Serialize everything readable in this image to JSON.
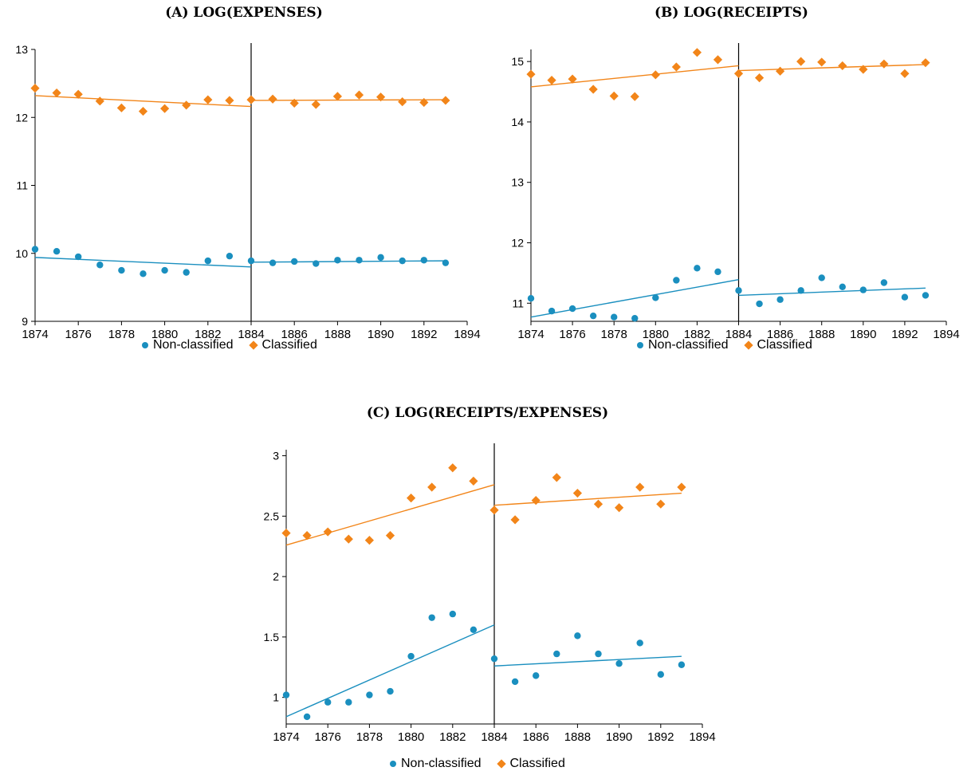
{
  "legend": {
    "series_a": "Non-classified",
    "series_b": "Classified"
  },
  "colors": {
    "non_classified": "#1a8fbf",
    "classified": "#f28519",
    "cutoff_line": "#000000"
  },
  "chart_data": [
    {
      "id": "a",
      "type": "scatter",
      "title": "(A) LOG(EXPENSES)",
      "xlim": [
        1874,
        1894
      ],
      "ylim": [
        9,
        13
      ],
      "xticks": [
        1874,
        1876,
        1878,
        1880,
        1882,
        1884,
        1886,
        1888,
        1890,
        1892,
        1894
      ],
      "yticks": [
        9,
        10,
        11,
        12,
        13
      ],
      "cutoff": 1884,
      "series": [
        {
          "name": "Non-classified",
          "x": [
            1874,
            1875,
            1876,
            1877,
            1878,
            1879,
            1880,
            1881,
            1882,
            1883,
            1884,
            1885,
            1886,
            1887,
            1888,
            1889,
            1890,
            1891,
            1892,
            1893
          ],
          "y": [
            10.06,
            10.03,
            9.95,
            9.83,
            9.75,
            9.7,
            9.75,
            9.72,
            9.89,
            9.96,
            9.89,
            9.86,
            9.88,
            9.85,
            9.9,
            9.9,
            9.94,
            9.89,
            9.9,
            9.86
          ],
          "fit_pre": [
            [
              1874,
              9.94
            ],
            [
              1884,
              9.8
            ]
          ],
          "fit_post": [
            [
              1884,
              9.87
            ],
            [
              1893,
              9.89
            ]
          ]
        },
        {
          "name": "Classified",
          "x": [
            1874,
            1875,
            1876,
            1877,
            1878,
            1879,
            1880,
            1881,
            1882,
            1883,
            1884,
            1885,
            1886,
            1887,
            1888,
            1889,
            1890,
            1891,
            1892,
            1893
          ],
          "y": [
            12.43,
            12.36,
            12.34,
            12.24,
            12.14,
            12.09,
            12.13,
            12.18,
            12.26,
            12.25,
            12.26,
            12.27,
            12.21,
            12.19,
            12.31,
            12.33,
            12.3,
            12.23,
            12.22,
            12.25
          ],
          "fit_pre": [
            [
              1874,
              12.32
            ],
            [
              1884,
              12.16
            ]
          ],
          "fit_post": [
            [
              1884,
              12.25
            ],
            [
              1893,
              12.26
            ]
          ]
        }
      ]
    },
    {
      "id": "b",
      "type": "scatter",
      "title": "(B) LOG(RECEIPTS)",
      "xlim": [
        1874,
        1894
      ],
      "ylim": [
        10.7,
        15.2
      ],
      "xticks": [
        1874,
        1876,
        1878,
        1880,
        1882,
        1884,
        1886,
        1888,
        1890,
        1892,
        1894
      ],
      "yticks": [
        11,
        12,
        13,
        14,
        15
      ],
      "cutoff": 1884,
      "series": [
        {
          "name": "Non-classified",
          "x": [
            1874,
            1875,
            1876,
            1877,
            1878,
            1879,
            1880,
            1881,
            1882,
            1883,
            1884,
            1885,
            1886,
            1887,
            1888,
            1889,
            1890,
            1891,
            1892,
            1893
          ],
          "y": [
            11.08,
            10.87,
            10.91,
            10.79,
            10.77,
            10.75,
            11.09,
            11.38,
            11.58,
            11.52,
            11.21,
            10.99,
            11.06,
            11.21,
            11.42,
            11.27,
            11.22,
            11.34,
            11.1,
            11.13
          ],
          "fit_pre": [
            [
              1874,
              10.77
            ],
            [
              1884,
              11.39
            ]
          ],
          "fit_post": [
            [
              1884,
              11.13
            ],
            [
              1893,
              11.25
            ]
          ]
        },
        {
          "name": "Classified",
          "x": [
            1874,
            1875,
            1876,
            1877,
            1878,
            1879,
            1880,
            1881,
            1882,
            1883,
            1884,
            1885,
            1886,
            1887,
            1888,
            1889,
            1890,
            1891,
            1892,
            1893
          ],
          "y": [
            14.79,
            14.69,
            14.71,
            14.54,
            14.43,
            14.42,
            14.78,
            14.91,
            15.15,
            15.03,
            14.8,
            14.73,
            14.84,
            15.0,
            14.99,
            14.93,
            14.87,
            14.96,
            14.8,
            14.98
          ],
          "fit_pre": [
            [
              1874,
              14.58
            ],
            [
              1884,
              14.93
            ]
          ],
          "fit_post": [
            [
              1884,
              14.85
            ],
            [
              1893,
              14.95
            ]
          ]
        }
      ]
    },
    {
      "id": "c",
      "type": "scatter",
      "title": "(C) LOG(RECEIPTS/EXPENSES)",
      "xlim": [
        1874,
        1894
      ],
      "ylim": [
        0.78,
        3.05
      ],
      "xticks": [
        1874,
        1876,
        1878,
        1880,
        1882,
        1884,
        1886,
        1888,
        1890,
        1892,
        1894
      ],
      "yticks": [
        1,
        1.5,
        2,
        2.5,
        3
      ],
      "cutoff": 1884,
      "series": [
        {
          "name": "Non-classified",
          "x": [
            1874,
            1875,
            1876,
            1877,
            1878,
            1879,
            1880,
            1881,
            1882,
            1883,
            1884,
            1885,
            1886,
            1887,
            1888,
            1889,
            1890,
            1891,
            1892,
            1893
          ],
          "y": [
            1.02,
            0.84,
            0.96,
            0.96,
            1.02,
            1.05,
            1.34,
            1.66,
            1.69,
            1.56,
            1.32,
            1.13,
            1.18,
            1.36,
            1.51,
            1.36,
            1.28,
            1.45,
            1.19,
            1.27
          ],
          "fit_pre": [
            [
              1874,
              0.84
            ],
            [
              1884,
              1.6
            ]
          ],
          "fit_post": [
            [
              1884,
              1.26
            ],
            [
              1893,
              1.34
            ]
          ]
        },
        {
          "name": "Classified",
          "x": [
            1874,
            1875,
            1876,
            1877,
            1878,
            1879,
            1880,
            1881,
            1882,
            1883,
            1884,
            1885,
            1886,
            1887,
            1888,
            1889,
            1890,
            1891,
            1892,
            1893
          ],
          "y": [
            2.36,
            2.34,
            2.37,
            2.31,
            2.3,
            2.34,
            2.65,
            2.74,
            2.9,
            2.79,
            2.55,
            2.47,
            2.63,
            2.82,
            2.69,
            2.6,
            2.57,
            2.74,
            2.6,
            2.74
          ],
          "fit_pre": [
            [
              1874,
              2.26
            ],
            [
              1884,
              2.76
            ]
          ],
          "fit_post": [
            [
              1884,
              2.59
            ],
            [
              1893,
              2.69
            ]
          ]
        }
      ]
    }
  ]
}
